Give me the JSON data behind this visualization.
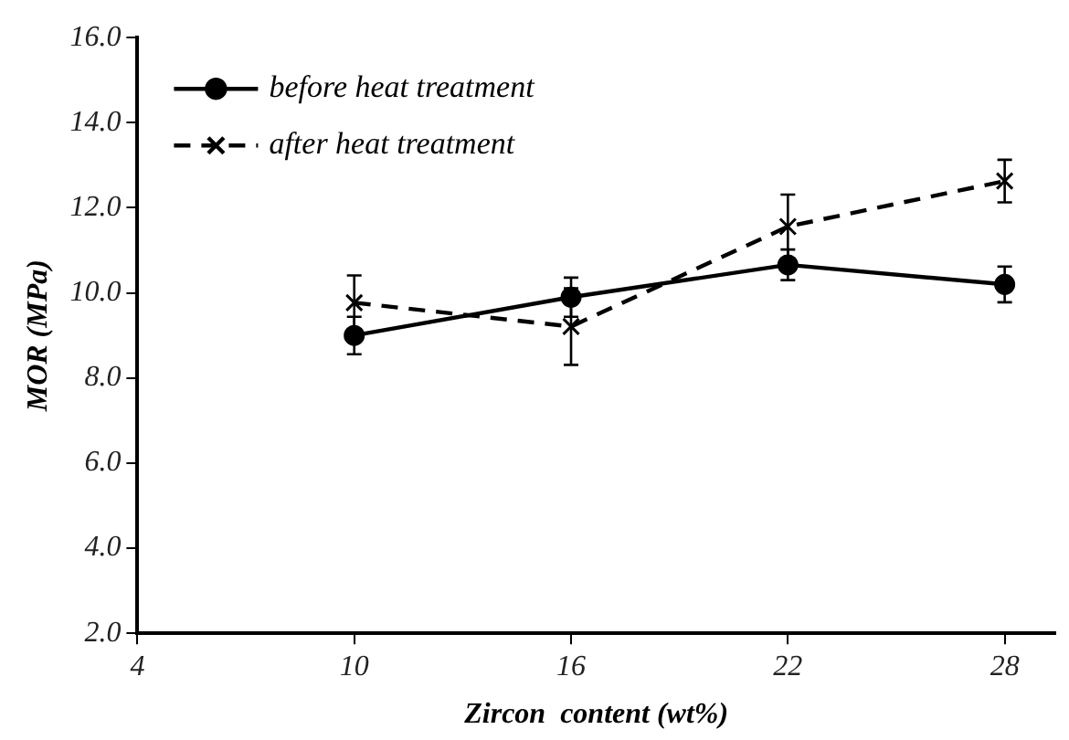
{
  "chart_data": {
    "type": "line",
    "xlabel": "Zircon  content (wt%)",
    "ylabel": "MOR (MPa)",
    "x": [
      10,
      16,
      22,
      28
    ],
    "series": [
      {
        "name": "before heat treatment",
        "color": "#000000",
        "values": [
          9.0,
          9.9,
          10.66,
          10.2
        ],
        "errors": [
          0.44,
          0.46,
          0.36,
          0.42
        ],
        "marker": "circle",
        "line_style": "solid"
      },
      {
        "name": "after heat treatment",
        "color": "#000000",
        "values": [
          9.77,
          9.21,
          11.56,
          12.63
        ],
        "errors": [
          0.64,
          0.9,
          0.75,
          0.5
        ],
        "marker": "cross",
        "line_style": "dashed"
      }
    ],
    "xlim": [
      4,
      29.4
    ],
    "xticks": [
      4,
      10,
      16,
      22,
      28
    ],
    "ylim": [
      2,
      16
    ],
    "yticks": [
      {
        "value": 2,
        "label": "2.0"
      },
      {
        "value": 4,
        "label": "4.0"
      },
      {
        "value": 6,
        "label": "6.0"
      },
      {
        "value": 8,
        "label": "8.0"
      },
      {
        "value": 10,
        "label": "10.0"
      },
      {
        "value": 12,
        "label": "12.0"
      },
      {
        "value": 14,
        "label": "14.0"
      },
      {
        "value": 16,
        "label": "16.0"
      }
    ],
    "grid": false,
    "legend": "top left"
  }
}
